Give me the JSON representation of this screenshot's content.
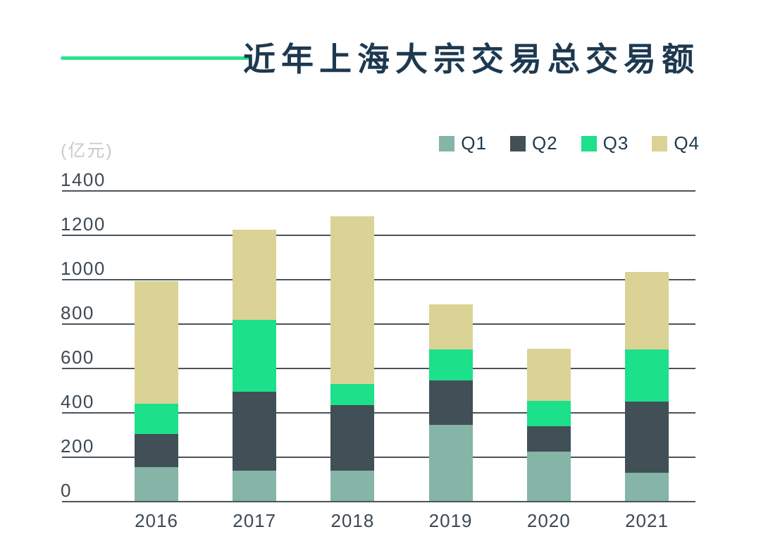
{
  "header": {
    "title": "近年上海大宗交易总交易额"
  },
  "axis": {
    "unit_label": "(亿元)"
  },
  "chart_data": {
    "type": "bar",
    "stacked": true,
    "title": "近年上海大宗交易总交易额",
    "unit": "亿元",
    "categories": [
      "2016",
      "2017",
      "2018",
      "2019",
      "2020",
      "2021"
    ],
    "series": [
      {
        "name": "Q1",
        "color": "#84b5a6",
        "values": [
          155,
          140,
          140,
          345,
          225,
          130
        ]
      },
      {
        "name": "Q2",
        "color": "#414f56",
        "values": [
          150,
          355,
          295,
          200,
          115,
          320
        ]
      },
      {
        "name": "Q3",
        "color": "#1de08a",
        "values": [
          135,
          325,
          95,
          140,
          115,
          235
        ]
      },
      {
        "name": "Q4",
        "color": "#dad395",
        "values": [
          555,
          405,
          755,
          205,
          235,
          350
        ]
      }
    ],
    "ylabel": "(亿元)",
    "ylim": [
      0,
      1400
    ],
    "ytick_step": 200,
    "grid": "horizontal",
    "legend_position": "top-right"
  },
  "colors": {
    "accent_line": "#2be38e",
    "title_text": "#1d3950",
    "axis_text": "#3d4952",
    "unit_text": "#c8cacb",
    "gridline": "#4a545c",
    "background": "#ffffff"
  }
}
